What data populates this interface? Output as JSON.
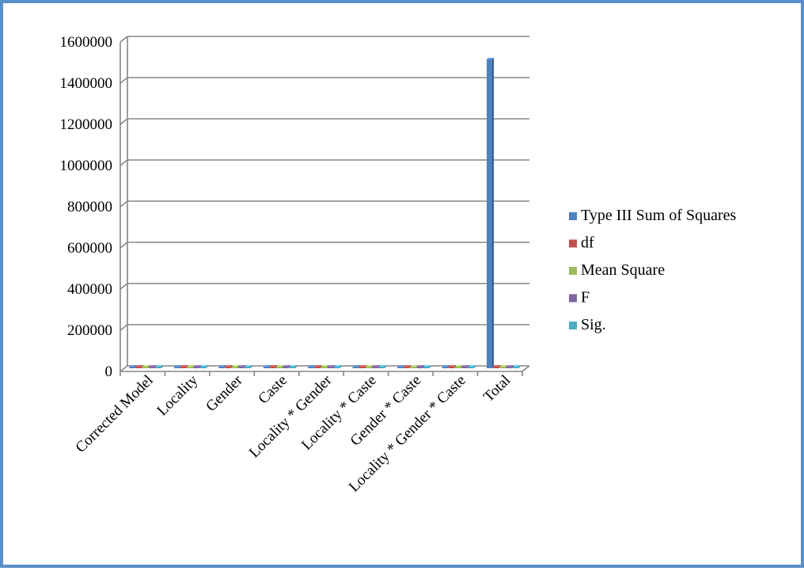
{
  "chart_data": {
    "type": "bar",
    "title": "",
    "xlabel": "",
    "ylabel": "",
    "ylim": [
      0,
      1600000
    ],
    "yticks": [
      0,
      200000,
      400000,
      600000,
      800000,
      1000000,
      1200000,
      1400000,
      1600000
    ],
    "ytick_labels": [
      "0",
      "200000",
      "400000",
      "600000",
      "800000",
      "1000000",
      "1200000",
      "1400000",
      "1600000"
    ],
    "grid": true,
    "legend_position": "right",
    "categories": [
      "Corrected Model",
      "Locality",
      "Gender",
      "Caste",
      "Locality * Gender",
      "Locality * Caste",
      "Gender * Caste",
      "Locality * Gender * Caste",
      "Total"
    ],
    "series": [
      {
        "name": "Type III Sum of Squares",
        "color": "#4f81bd",
        "values": [
          200,
          30,
          20,
          60,
          5,
          40,
          10,
          5,
          1500000
        ]
      },
      {
        "name": "df",
        "color": "#c0504d",
        "values": [
          15,
          1,
          1,
          3,
          1,
          3,
          3,
          3,
          576
        ]
      },
      {
        "name": "Mean Square",
        "color": "#9bbb59",
        "values": [
          15,
          30,
          20,
          20,
          5,
          13,
          3,
          2,
          0
        ]
      },
      {
        "name": "F",
        "color": "#8064a2",
        "values": [
          5,
          8,
          6,
          7,
          1,
          4,
          1,
          1,
          0
        ]
      },
      {
        "name": "Sig.",
        "color": "#4bacc6",
        "values": [
          0,
          0.01,
          0.02,
          0.001,
          0.4,
          0.01,
          0.5,
          0.6,
          0
        ]
      }
    ]
  }
}
